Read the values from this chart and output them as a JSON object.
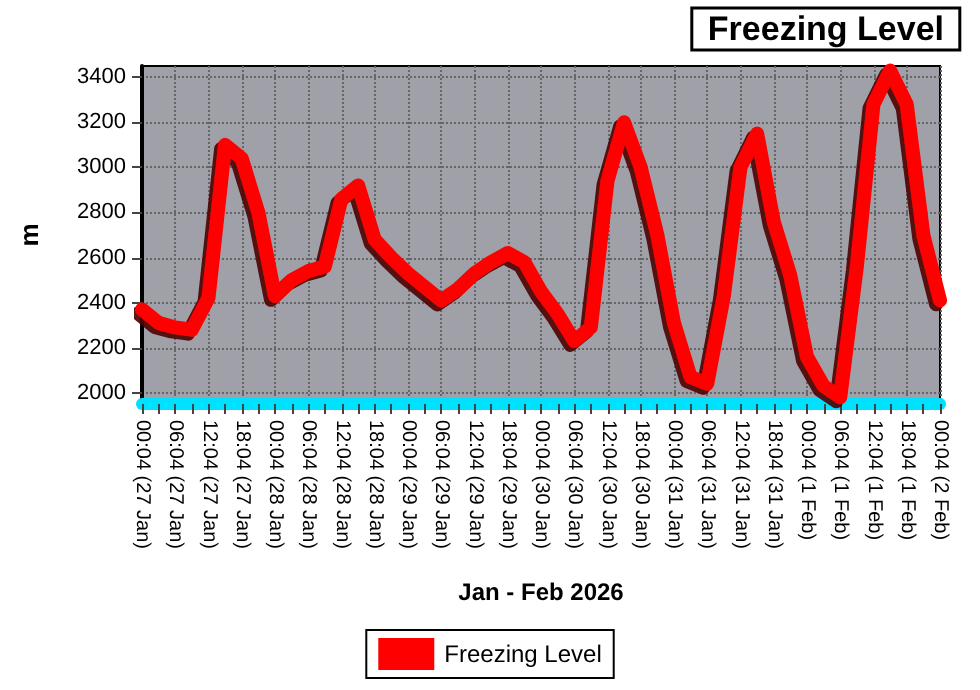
{
  "chart_data": {
    "type": "line",
    "title": "Freezing Level",
    "xlabel": "Jan - Feb 2026",
    "ylabel": "m",
    "categories": [
      "00:04 (27 Jan)",
      null,
      "06:04 (27 Jan)",
      null,
      "12:04 (27 Jan)",
      null,
      "18:04 (27 Jan)",
      null,
      "00:04 (28 Jan)",
      null,
      "06:04 (28 Jan)",
      null,
      "12:04 (28 Jan)",
      null,
      "18:04 (28 Jan)",
      null,
      "00:04 (29 Jan)",
      null,
      "06:04 (29 Jan)",
      null,
      "12:04 (29 Jan)",
      null,
      "18:04 (29 Jan)",
      null,
      "00:04 (30 Jan)",
      null,
      "06:04 (30 Jan)",
      null,
      "12:04 (30 Jan)",
      null,
      "18:04 (30 Jan)",
      null,
      "00:04 (31 Jan)",
      null,
      "06:04 (31 Jan)",
      null,
      "12:04 (31 Jan)",
      null,
      "18:04 (31 Jan)",
      null,
      "00:04 (1 Feb)",
      null,
      "06:04 (1 Feb)",
      null,
      "12:04 (1 Feb)",
      null,
      "18:04 (1 Feb)",
      null,
      "00:04 (2 Feb)"
    ],
    "series": [
      {
        "name": "Freezing Level",
        "color": "#ff0000",
        "values": [
          2370,
          2310,
          2290,
          2280,
          2420,
          3100,
          3040,
          2800,
          2430,
          2500,
          2540,
          2560,
          2860,
          2920,
          2680,
          2600,
          2530,
          2470,
          2410,
          2460,
          2530,
          2580,
          2620,
          2580,
          2450,
          2350,
          2230,
          2290,
          2940,
          3200,
          3000,
          2700,
          2310,
          2070,
          2040,
          2430,
          3000,
          3150,
          2760,
          2520,
          2160,
          2030,
          1980,
          2560,
          3280,
          3430,
          3280,
          2700,
          2410
        ]
      }
    ],
    "ylim": [
      1950,
      3450
    ],
    "yticks": [
      2000,
      2200,
      2400,
      2600,
      2800,
      3000,
      3200,
      3400
    ],
    "grid": true,
    "legend": "bottom",
    "marker": "none",
    "line_style": "solid"
  }
}
